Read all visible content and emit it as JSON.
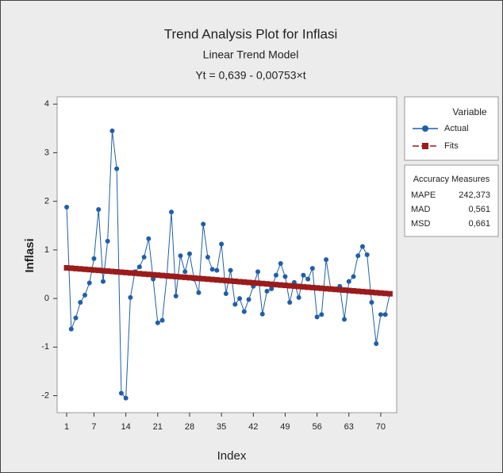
{
  "chart_data": {
    "type": "line",
    "title": "Trend Analysis Plot for Inflasi",
    "subtitle": "Linear Trend Model",
    "equation": "Yt = 0,639 - 0,00753×t",
    "x_label": "Index",
    "y_label": "Inflasi",
    "x": [
      1,
      2,
      3,
      4,
      5,
      6,
      7,
      8,
      9,
      10,
      11,
      12,
      13,
      14,
      15,
      16,
      17,
      18,
      19,
      20,
      21,
      22,
      23,
      24,
      25,
      26,
      27,
      28,
      29,
      30,
      31,
      32,
      33,
      34,
      35,
      36,
      37,
      38,
      39,
      40,
      41,
      42,
      43,
      44,
      45,
      46,
      47,
      48,
      49,
      50,
      51,
      52,
      53,
      54,
      55,
      56,
      57,
      58,
      59,
      60,
      61,
      62,
      63,
      64,
      65,
      66,
      67,
      68,
      69,
      70,
      71,
      72
    ],
    "series": [
      {
        "name": "Actual",
        "color": "#1f5fa8",
        "marker": "circle",
        "values": [
          1.88,
          -0.63,
          -0.4,
          -0.08,
          0.07,
          0.32,
          0.82,
          1.83,
          0.35,
          1.18,
          3.45,
          2.67,
          -1.95,
          -2.05,
          0.02,
          0.55,
          0.65,
          0.85,
          1.23,
          0.4,
          -0.5,
          -0.45,
          0.45,
          1.78,
          0.05,
          0.88,
          0.55,
          0.92,
          0.4,
          0.12,
          1.53,
          0.85,
          0.6,
          0.58,
          1.12,
          0.1,
          0.58,
          -0.12,
          0,
          -0.27,
          -0.02,
          0.25,
          0.55,
          -0.32,
          0.15,
          0.2,
          0.48,
          0.72,
          0.45,
          -0.08,
          0.33,
          0.02,
          0.48,
          0.4,
          0.62,
          -0.38,
          -0.33,
          0.8,
          0.2,
          0.18,
          0.25,
          -0.43,
          0.35,
          0.45,
          0.88,
          1.07,
          0.9,
          -0.08,
          -0.93,
          -0.33,
          -0.33,
          0.1
        ]
      },
      {
        "name": "Fits",
        "color": "#9b1b1b",
        "marker": "square",
        "values": [
          0.631,
          0.624,
          0.616,
          0.609,
          0.601,
          0.594,
          0.586,
          0.579,
          0.571,
          0.564,
          0.556,
          0.549,
          0.541,
          0.534,
          0.526,
          0.519,
          0.511,
          0.503,
          0.496,
          0.488,
          0.481,
          0.473,
          0.466,
          0.458,
          0.451,
          0.443,
          0.436,
          0.428,
          0.421,
          0.413,
          0.406,
          0.398,
          0.391,
          0.383,
          0.375,
          0.368,
          0.36,
          0.353,
          0.345,
          0.338,
          0.33,
          0.323,
          0.315,
          0.308,
          0.3,
          0.292,
          0.285,
          0.277,
          0.27,
          0.262,
          0.255,
          0.247,
          0.24,
          0.232,
          0.225,
          0.217,
          0.21,
          0.202,
          0.195,
          0.187,
          0.18,
          0.172,
          0.164,
          0.157,
          0.149,
          0.142,
          0.134,
          0.127,
          0.119,
          0.112,
          0.104,
          0.097
        ]
      }
    ],
    "xlim": [
      -1.1,
      73.5
    ],
    "xticks": [
      1,
      7,
      14,
      21,
      28,
      35,
      42,
      49,
      56,
      63,
      70
    ],
    "ylim": [
      -2.35,
      4.15
    ],
    "yticks": [
      -2,
      -1,
      0,
      1,
      2,
      3,
      4
    ],
    "legend_title": "Variable",
    "accuracy": {
      "title": "Accuracy Measures",
      "rows": [
        [
          "MAPE",
          "242,373"
        ],
        [
          "MAD",
          "0,561"
        ],
        [
          "MSD",
          "0,661"
        ]
      ]
    }
  }
}
